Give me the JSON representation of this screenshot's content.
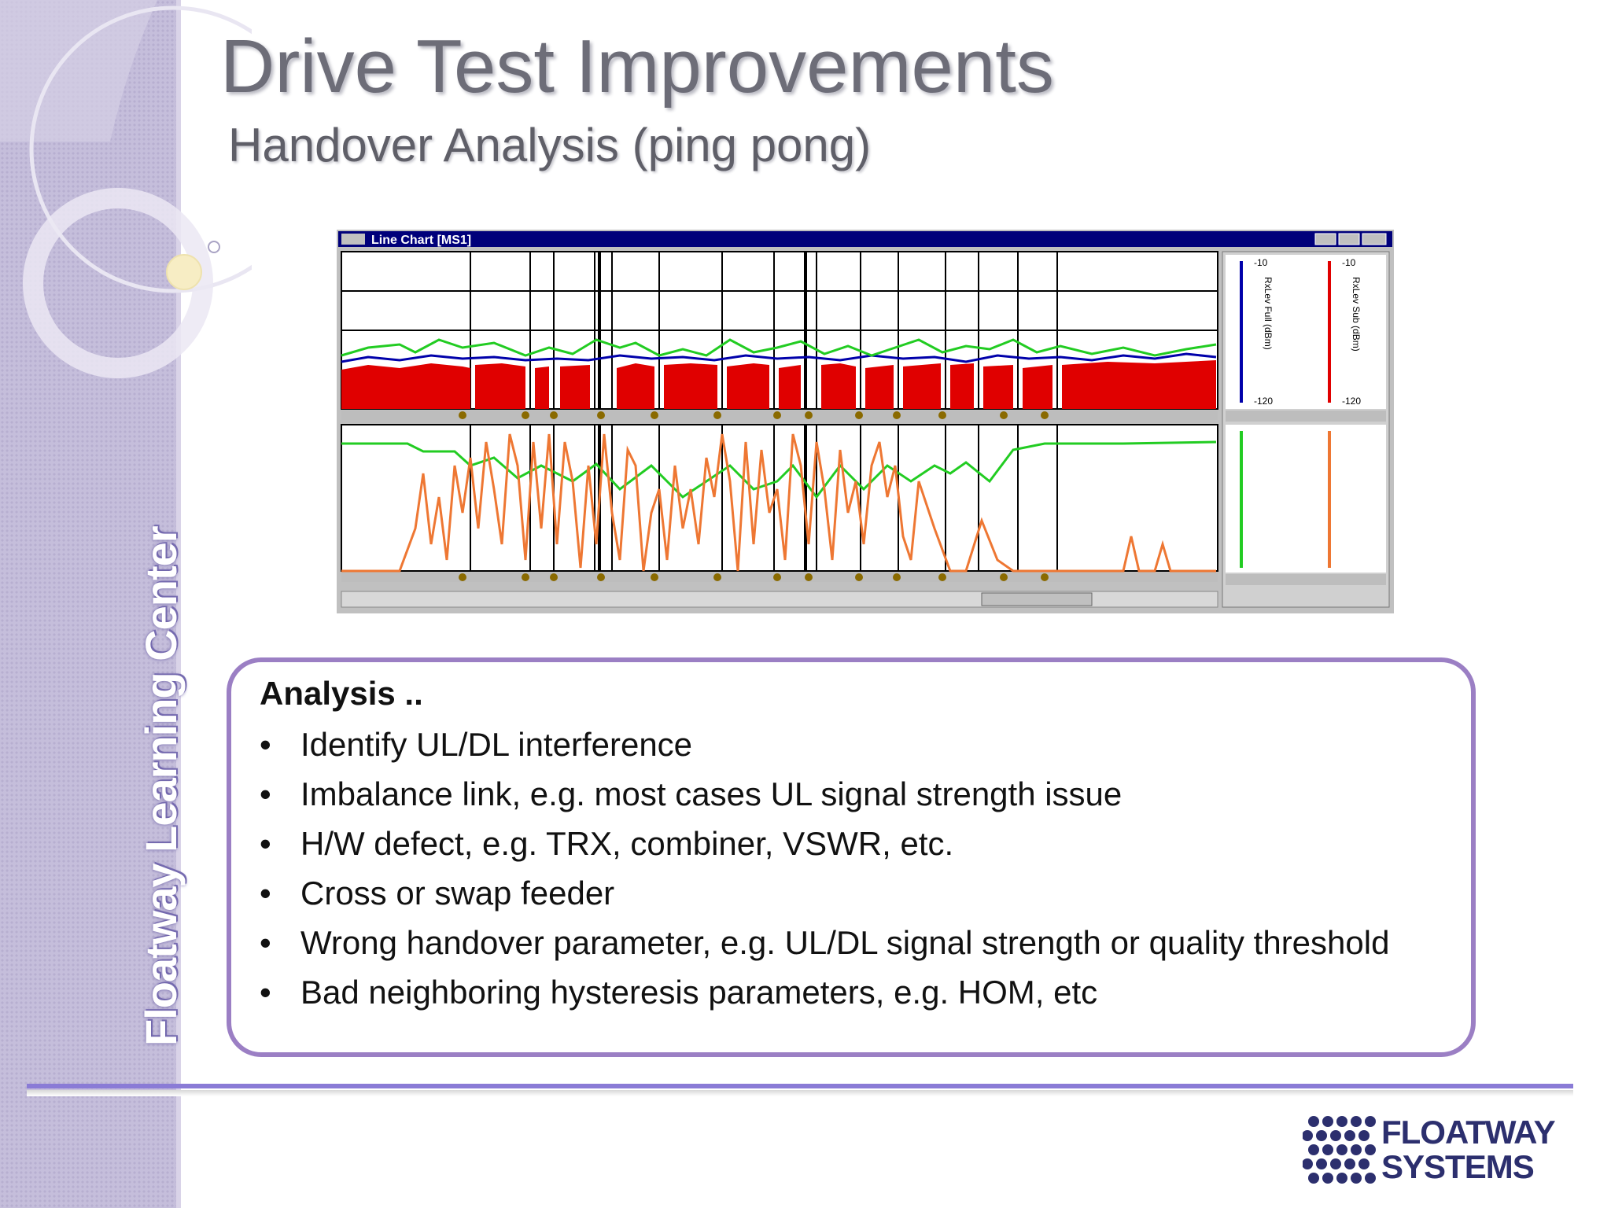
{
  "slide": {
    "title": "Drive Test Improvements",
    "subtitle": "Handover Analysis (ping pong)",
    "sidebar_text": "Floatway Learning Center"
  },
  "chart_window": {
    "title": "Line Chart [MS1]",
    "top_scale": [
      "-10",
      "-120",
      "-10",
      "-120"
    ],
    "top_legends": [
      "RxLev Full (dBm)",
      "RxLev Sub (dBm)"
    ]
  },
  "analysis": {
    "heading": "Analysis ..",
    "bullet_symbol": "•",
    "items": [
      "Identify UL/DL interference",
      "Imbalance link, e.g. most cases UL signal strength issue",
      "H/W defect, e.g. TRX, combiner, VSWR, etc.",
      "Cross or swap feeder",
      "Wrong handover parameter, e.g. UL/DL signal strength or quality threshold",
      "Bad neighboring hysteresis parameters, e.g. HOM, etc"
    ]
  },
  "logo": {
    "line1": "FLOATWAY",
    "line2": "SYSTEMS",
    "color": "#2c2f6e"
  },
  "colors": {
    "sidebar": "#c5bedb",
    "accent": "#8a7bd6",
    "box_border": "#9b7fc4",
    "chart_red": "#e00000",
    "chart_green": "#22cc22",
    "chart_blue": "#0000aa",
    "chart_orange": "#ee7733"
  }
}
